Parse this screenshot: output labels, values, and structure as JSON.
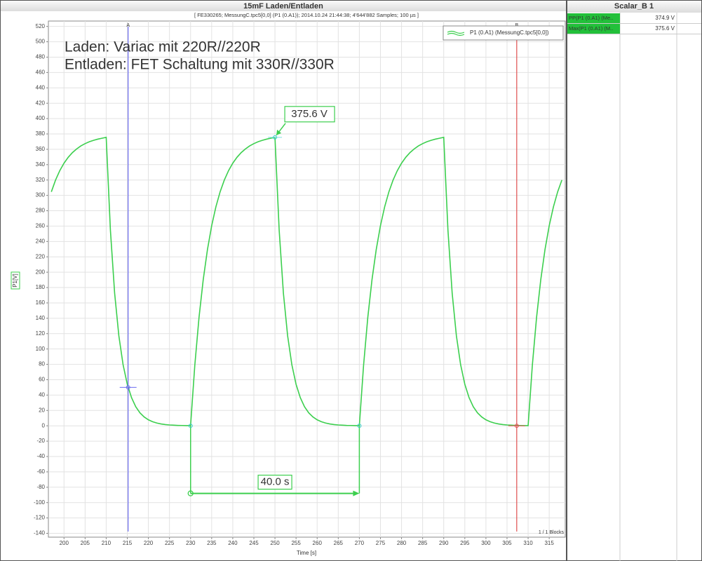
{
  "chart_data": {
    "type": "line",
    "title": "15mF Laden/Entladen",
    "subtitle": "[ FE330265; MessungC.tpc5[0,0] (P1 (0.A1)); 2014.10.24 21:44:38; 4'644'882 Samples; 100 µs ]",
    "x_label": "Time [s]",
    "y_label": "P1[V]",
    "notes": [
      "Laden: Variac mit 220R//220R",
      "Entladen: FET Schaltung mit 330R//330R"
    ],
    "footnote": "1 / 1 Blocks",
    "x": [
      197,
      198,
      199,
      200,
      201,
      202,
      203,
      204,
      205,
      206,
      207,
      208,
      209,
      210,
      211,
      212,
      213,
      214,
      215,
      216,
      217,
      218,
      219,
      220,
      221,
      222,
      223,
      224,
      225,
      226,
      227,
      228,
      229,
      230,
      231,
      232,
      233,
      234,
      235,
      236,
      237,
      238,
      239,
      240,
      241,
      242,
      243,
      244,
      245,
      246,
      247,
      248,
      249,
      250,
      251,
      252,
      253,
      254,
      255,
      256,
      257,
      258,
      259,
      260,
      261,
      262,
      263,
      264,
      265,
      266,
      267,
      268,
      269,
      270,
      271,
      272,
      273,
      274,
      275,
      276,
      277,
      278,
      279,
      280,
      281,
      282,
      283,
      284,
      285,
      286,
      287,
      288,
      289,
      290,
      291,
      292,
      293,
      294,
      295,
      296,
      297,
      298,
      299,
      300,
      301,
      302,
      303,
      304,
      305,
      306,
      307,
      308,
      309,
      310,
      311,
      312,
      313,
      314,
      315,
      316,
      317,
      318
    ],
    "series": [
      {
        "name": "P1 (0.A1) (MessungC.tpc5[0,0])",
        "color": "#3ccf4e",
        "values": [
          304.6,
          320.0,
          332.2,
          341.9,
          349.6,
          355.7,
          360.5,
          364.4,
          367.4,
          369.8,
          371.7,
          373.2,
          374.4,
          375.6,
          254.5,
          172.7,
          117.2,
          79.6,
          54.0,
          36.7,
          24.9,
          16.9,
          11.5,
          7.8,
          5.3,
          3.6,
          2.4,
          1.6,
          1.1,
          0.8,
          0.5,
          0.4,
          0.2,
          0.2,
          78.6,
          141.0,
          190.3,
          229.5,
          260.5,
          285.1,
          304.6,
          320.0,
          332.2,
          341.9,
          349.6,
          355.7,
          360.5,
          364.4,
          367.4,
          369.8,
          371.7,
          373.2,
          374.4,
          375.6,
          254.5,
          172.7,
          117.2,
          79.6,
          54.0,
          36.7,
          24.9,
          16.9,
          11.5,
          7.8,
          5.3,
          3.6,
          2.4,
          1.6,
          1.1,
          0.8,
          0.5,
          0.4,
          0.2,
          0.2,
          78.6,
          141.0,
          190.3,
          229.5,
          260.5,
          285.1,
          304.6,
          320.0,
          332.2,
          341.9,
          349.6,
          355.7,
          360.5,
          364.4,
          367.4,
          369.8,
          371.7,
          373.2,
          374.4,
          375.6,
          254.5,
          172.7,
          117.2,
          79.6,
          54.0,
          36.7,
          24.9,
          16.9,
          11.5,
          7.8,
          5.3,
          3.6,
          2.4,
          1.6,
          1.1,
          0.8,
          0.5,
          0.4,
          0.2,
          0.2,
          78.6,
          141.0,
          190.3,
          229.5,
          260.5,
          285.1,
          304.6,
          320.0
        ]
      }
    ],
    "xlim": [
      196.3,
      318.8
    ],
    "ylim": [
      -145,
      527
    ],
    "xticks": [
      200,
      205,
      210,
      215,
      220,
      225,
      230,
      235,
      240,
      245,
      250,
      255,
      260,
      265,
      270,
      275,
      280,
      285,
      290,
      295,
      300,
      305,
      310,
      315
    ],
    "yticks": [
      -140,
      -120,
      -100,
      -80,
      -60,
      -40,
      -20,
      0,
      20,
      40,
      60,
      80,
      100,
      120,
      140,
      160,
      180,
      200,
      220,
      240,
      260,
      280,
      300,
      320,
      340,
      360,
      380,
      400,
      420,
      440,
      460,
      480,
      500,
      520
    ],
    "grid": true,
    "legend": "upper right",
    "cursors": [
      {
        "label": "A",
        "x": 215.2,
        "y": 50,
        "color": "#6b6bf0"
      },
      {
        "label": "B",
        "x": 307.3,
        "y": 0,
        "color": "#e05050"
      }
    ],
    "peak_label": {
      "text": "375.6  V",
      "x": 250,
      "y": 375.6
    },
    "span": {
      "text": "40.0 s",
      "x1": 230,
      "x2": 270,
      "y": -88
    }
  },
  "panel": {
    "title": "Scalar_B 1",
    "rows": [
      [
        "PP(P1 (0.A1) (Me..",
        "374.9 V"
      ],
      [
        "Max(P1 (0.A1) (M..",
        "375.6 V"
      ]
    ]
  }
}
